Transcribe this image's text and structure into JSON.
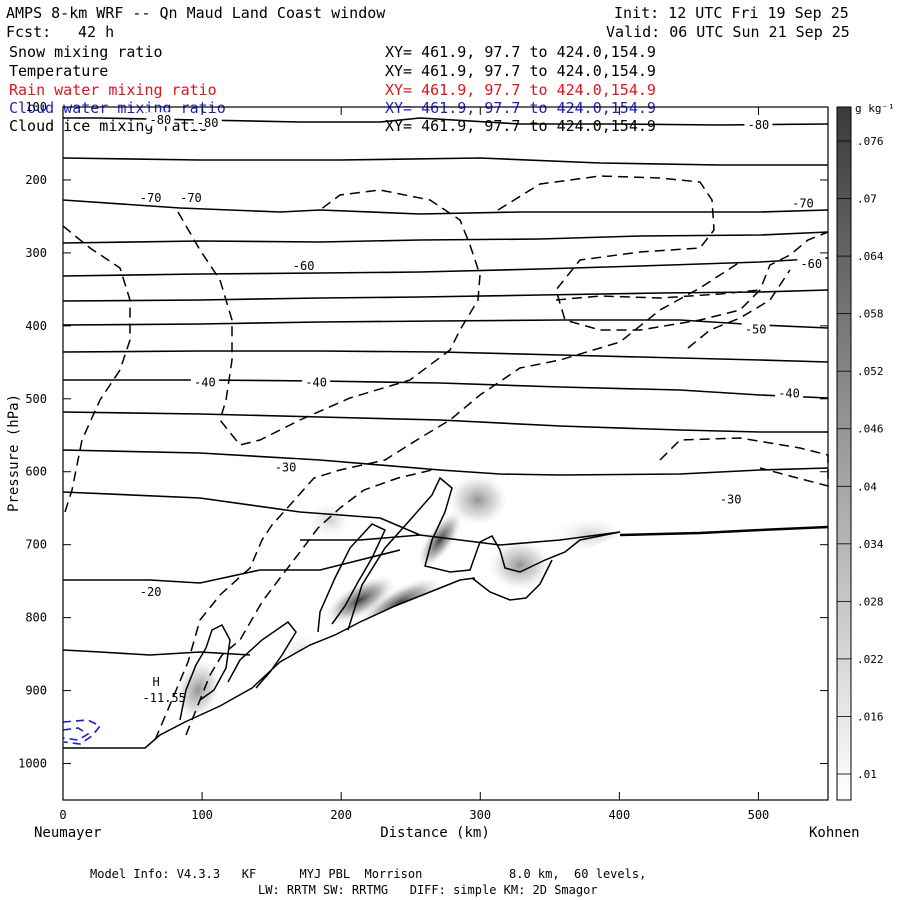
{
  "header": {
    "title": "AMPS 8-km WRF -- Qn Maud Land Coast window",
    "init": "Init: 12 UTC Fri 19 Sep 25",
    "fcst_label": "Fcst:",
    "fcst_value": "42 h",
    "valid": "Valid: 06 UTC Sun 21 Sep 25"
  },
  "fields": [
    {
      "name": "Snow mixing ratio",
      "xy": "XY= 461.9, 97.7 to 424.0,154.9",
      "color": "#000000"
    },
    {
      "name": "Temperature",
      "xy": "XY= 461.9, 97.7 to 424.0,154.9",
      "color": "#000000"
    },
    {
      "name": "Rain water mixing ratio",
      "xy": "XY= 461.9, 97.7 to 424.0,154.9",
      "color": "#e0141e"
    },
    {
      "name": "Cloud water mixing ratio",
      "xy": "XY= 461.9, 97.7 to 424.0,154.9",
      "color": "#1e1ec8"
    },
    {
      "name": "Cloud ice mixing ratio",
      "xy": "XY= 461.9, 97.7 to 424.0,154.9",
      "color": "#000000"
    }
  ],
  "footer": {
    "line1": "Model Info: V4.3.3   KF      MYJ PBL  Morrison            8.0 km,  60 levels,",
    "line2": "LW: RRTM SW: RRTMG   DIFF: simple KM: 2D Smagor"
  },
  "chart_data": {
    "type": "contour cross-section",
    "xlabel": "Distance (km)",
    "ylabel": "Pressure (hPa)",
    "xlim": [
      0,
      550
    ],
    "ylim": [
      1050,
      100
    ],
    "xticks": [
      0,
      100,
      200,
      300,
      400,
      500
    ],
    "yticks": [
      100,
      200,
      300,
      400,
      500,
      600,
      700,
      800,
      900,
      1000
    ],
    "left_endpoint": "Neumayer",
    "right_endpoint": "Kohnen",
    "colorbar": {
      "unit": "g kg⁻¹",
      "ticks": [
        ".01",
        ".016",
        ".022",
        ".028",
        ".034",
        ".04",
        ".046",
        ".052",
        ".058",
        ".064",
        ".07",
        ".076"
      ]
    },
    "temperature_contours_degC": [
      -80,
      -70,
      -60,
      -50,
      -40,
      -30,
      -20
    ],
    "temperature_labels": [
      {
        "x": 70,
        "p": 118,
        "text": "-80"
      },
      {
        "x": 104,
        "p": 122,
        "text": "-80"
      },
      {
        "x": 500,
        "p": 125,
        "text": "-80"
      },
      {
        "x": 63,
        "p": 225,
        "text": "-70"
      },
      {
        "x": 92,
        "p": 225,
        "text": "-70"
      },
      {
        "x": 532,
        "p": 232,
        "text": "-70"
      },
      {
        "x": 173,
        "p": 318,
        "text": "-60"
      },
      {
        "x": 538,
        "p": 315,
        "text": "-60"
      },
      {
        "x": 498,
        "p": 405,
        "text": "-50"
      },
      {
        "x": 102,
        "p": 478,
        "text": "-40"
      },
      {
        "x": 182,
        "p": 478,
        "text": "-40"
      },
      {
        "x": 522,
        "p": 493,
        "text": "-40"
      },
      {
        "x": 160,
        "p": 594,
        "text": "-30"
      },
      {
        "x": 480,
        "p": 638,
        "text": "-30"
      },
      {
        "x": 63,
        "p": 765,
        "text": "-20"
      }
    ],
    "high_marker": {
      "x": 50,
      "p": 905,
      "symbol": "H",
      "value": "-11.55"
    }
  }
}
